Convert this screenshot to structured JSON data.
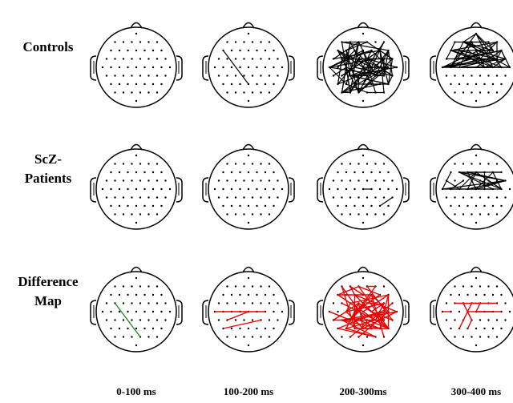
{
  "rows": [
    {
      "lines": [
        "Controls"
      ]
    },
    {
      "lines": [
        "ScZ-",
        "Patients"
      ]
    },
    {
      "lines": [
        "Difference",
        "Map"
      ]
    }
  ],
  "columns": [
    "0-100 ms",
    "100-200 ms",
    "200-300ms",
    "300-400 ms"
  ]
}
